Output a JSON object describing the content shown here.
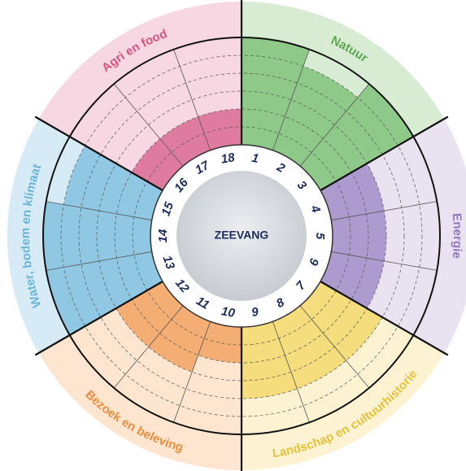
{
  "center": "ZEEVANG",
  "sectors": [
    {
      "label": "Natuur",
      "band": "#d8ecd3",
      "fill": "#8fc98a",
      "text": "#5aa84f",
      "indicators": [
        {
          "number": "1",
          "level": 6
        },
        {
          "number": "2",
          "level": 5
        },
        {
          "number": "3",
          "level": 6
        }
      ]
    },
    {
      "label": "Energie",
      "band": "#e8e2f1",
      "fill": "#ad9acf",
      "text": "#8e77bf",
      "indicators": [
        {
          "number": "4",
          "level": 3
        },
        {
          "number": "5",
          "level": 3
        },
        {
          "number": "6",
          "level": 3
        }
      ]
    },
    {
      "label": "Landschap en cultuurhistorie",
      "band": "#fdf3d2",
      "fill": "#f5dc7c",
      "text": "#e6c23a",
      "indicators": [
        {
          "number": "7",
          "level": 4
        },
        {
          "number": "8",
          "level": 4
        },
        {
          "number": "9",
          "level": 4
        }
      ]
    },
    {
      "label": "Bezoek en beleving",
      "band": "#fde5d0",
      "fill": "#f4ad72",
      "text": "#ef8d3a",
      "indicators": [
        {
          "number": "10",
          "level": 2
        },
        {
          "number": "11",
          "level": 3
        },
        {
          "number": "12",
          "level": 3
        }
      ]
    },
    {
      "label": "Water, bodem en klimaat",
      "band": "#d6ebf5",
      "fill": "#90c8e4",
      "text": "#6ab4da",
      "indicators": [
        {
          "number": "13",
          "level": 6
        },
        {
          "number": "14",
          "level": 6
        },
        {
          "number": "15",
          "level": 5
        }
      ]
    },
    {
      "label": "Agri en food",
      "band": "#f7d8e2",
      "fill": "#e07ba0",
      "text": "#d9547f",
      "indicators": [
        {
          "number": "16",
          "level": 2
        },
        {
          "number": "17",
          "level": 2
        },
        {
          "number": "18",
          "level": 2
        }
      ]
    }
  ]
}
